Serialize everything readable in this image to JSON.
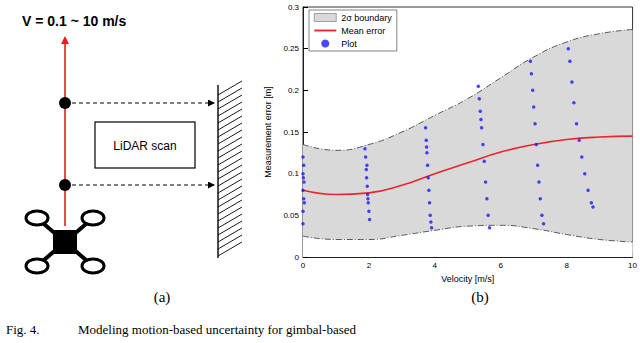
{
  "diagram": {
    "speed_label": "V = 0.1 ~ 10 m/s",
    "box_label": "LiDAR scan",
    "tag": "(a)"
  },
  "chart_tag": "(b)",
  "caption": {
    "number": "Fig. 4.",
    "text": "Modeling motion-based uncertainty for gimbal-based"
  },
  "chart_data": {
    "type": "scatter",
    "x_label": "Velocity [m/s]",
    "y_label": "Measurement error [m]",
    "xlim": [
      0,
      10
    ],
    "xticks": [
      0,
      2,
      4,
      6,
      8,
      10
    ],
    "ylim": [
      0,
      0.3
    ],
    "yticks": [
      0,
      0.05,
      0.1,
      0.15,
      0.2,
      0.25,
      0.3
    ],
    "grid": false,
    "legend": "upper left",
    "x": [
      0,
      1,
      2,
      3,
      4,
      5,
      6,
      7,
      8,
      9,
      10
    ],
    "series": [
      {
        "name": "2σ boundary",
        "type": "band",
        "color": "#d9d9d9",
        "line_style": "dashdot",
        "lower": [
          0.025,
          0.021,
          0.021,
          0.026,
          0.032,
          0.037,
          0.038,
          0.034,
          0.027,
          0.021,
          0.018
        ],
        "upper": [
          0.135,
          0.128,
          0.135,
          0.15,
          0.17,
          0.19,
          0.215,
          0.24,
          0.258,
          0.268,
          0.273
        ]
      },
      {
        "name": "Mean error",
        "type": "line",
        "color": "#e8262a",
        "line_style": "solid",
        "values": [
          0.08,
          0.075,
          0.077,
          0.086,
          0.1,
          0.113,
          0.126,
          0.135,
          0.141,
          0.144,
          0.145
        ]
      },
      {
        "name": "Plot",
        "type": "scatter",
        "color": "#1a1aff",
        "marker": "circle",
        "x": [
          0,
          0,
          0.02,
          0,
          0.03,
          0,
          0.02,
          0,
          0.04,
          0.01,
          1.88,
          1.9,
          1.92,
          1.93,
          1.95,
          1.96,
          1.98,
          2.0,
          2.02,
          1.94,
          1.97,
          3.72,
          3.74,
          3.76,
          3.78,
          3.8,
          3.82,
          3.84,
          3.86,
          3.9,
          3.88,
          3.75,
          5.32,
          5.35,
          5.38,
          5.42,
          5.46,
          5.5,
          5.54,
          5.58,
          5.62,
          5.66,
          5.4,
          6.9,
          6.93,
          6.97,
          7.0,
          7.04,
          7.08,
          7.12,
          7.16,
          7.2,
          7.25,
          7.3,
          8.05,
          8.1,
          8.16,
          8.22,
          8.3,
          8.38,
          8.46,
          8.55,
          8.65,
          8.75,
          8.8
        ],
        "values": [
          0.04,
          0.055,
          0.07,
          0.08,
          0.09,
          0.1,
          0.11,
          0.12,
          0.065,
          0.095,
          0.13,
          0.12,
          0.105,
          0.095,
          0.085,
          0.075,
          0.065,
          0.055,
          0.045,
          0.11,
          0.07,
          0.155,
          0.14,
          0.125,
          0.11,
          0.095,
          0.08,
          0.065,
          0.05,
          0.035,
          0.042,
          0.132,
          0.205,
          0.19,
          0.175,
          0.155,
          0.135,
          0.115,
          0.09,
          0.07,
          0.05,
          0.035,
          0.165,
          0.235,
          0.22,
          0.2,
          0.18,
          0.16,
          0.135,
          0.11,
          0.09,
          0.07,
          0.05,
          0.04,
          0.25,
          0.235,
          0.21,
          0.185,
          0.16,
          0.14,
          0.12,
          0.1,
          0.08,
          0.065,
          0.06
        ]
      }
    ]
  }
}
